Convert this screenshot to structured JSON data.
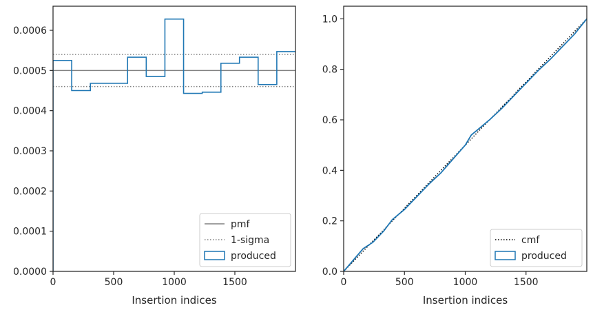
{
  "chart_data": [
    {
      "type": "step",
      "xlabel": "Insertion indices",
      "ylabel": "",
      "xlim": [
        0,
        2000
      ],
      "ylim": [
        0,
        0.00066
      ],
      "xticks": [
        0,
        500,
        1000,
        1500
      ],
      "xtick_labels": [
        "0",
        "500",
        "1000",
        "1500"
      ],
      "yticks": [
        0,
        0.0001,
        0.0002,
        0.0003,
        0.0004,
        0.0005,
        0.0006
      ],
      "ytick_labels": [
        "0.0000",
        "0.0001",
        "0.0002",
        "0.0003",
        "0.0004",
        "0.0005",
        "0.0006"
      ],
      "grid": false,
      "legend_position": "lower-right",
      "pmf": 0.0005,
      "sigma_band": [
        0.00046,
        0.00054
      ],
      "bin_edges": [
        0,
        154,
        308,
        462,
        615,
        769,
        923,
        1077,
        1231,
        1385,
        1538,
        1692,
        1846,
        2000
      ],
      "produced": [
        0.000525,
        0.00045,
        0.000468,
        0.000468,
        0.000533,
        0.000485,
        0.000628,
        0.000443,
        0.000446,
        0.000518,
        0.000533,
        0.000465,
        0.000547
      ],
      "legend": [
        {
          "label": "pmf",
          "style": "solid",
          "color": "#808080"
        },
        {
          "label": "1-sigma",
          "style": "dotted",
          "color": "#808080"
        },
        {
          "label": "produced",
          "style": "patch",
          "color": "#1f77b4"
        }
      ]
    },
    {
      "type": "line",
      "xlabel": "Insertion indices",
      "ylabel": "",
      "xlim": [
        0,
        2000
      ],
      "ylim": [
        0,
        1.05
      ],
      "xticks": [
        0,
        500,
        1000,
        1500
      ],
      "xtick_labels": [
        "0",
        "500",
        "1000",
        "1500"
      ],
      "yticks": [
        0,
        0.2,
        0.4,
        0.6,
        0.8,
        1.0
      ],
      "ytick_labels": [
        "0.0",
        "0.2",
        "0.4",
        "0.6",
        "0.8",
        "1.0"
      ],
      "grid": false,
      "legend_position": "lower-right",
      "cmf": {
        "x": [
          0,
          2000
        ],
        "y": [
          0,
          1
        ]
      },
      "produced": {
        "x": [
          0,
          80,
          160,
          240,
          330,
          400,
          500,
          600,
          700,
          800,
          900,
          1000,
          1050,
          1100,
          1200,
          1300,
          1400,
          1500,
          1600,
          1700,
          1800,
          1900,
          2000
        ],
        "y": [
          0,
          0.045,
          0.09,
          0.115,
          0.16,
          0.205,
          0.245,
          0.295,
          0.345,
          0.39,
          0.445,
          0.5,
          0.54,
          0.56,
          0.6,
          0.645,
          0.695,
          0.745,
          0.795,
          0.84,
          0.89,
          0.94,
          1.0
        ]
      },
      "legend": [
        {
          "label": "cmf",
          "style": "dotted",
          "color": "#000000"
        },
        {
          "label": "produced",
          "style": "patch",
          "color": "#1f77b4"
        }
      ]
    }
  ]
}
